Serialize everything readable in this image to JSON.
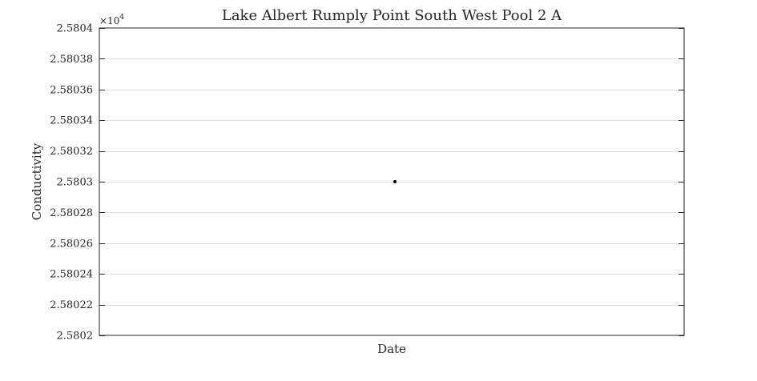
{
  "chart_data": {
    "type": "scatter",
    "title": "Lake Albert Rumply Point South West Pool 2 A",
    "xlabel": "Date",
    "ylabel": "Conductivity",
    "ylim": [
      2.5802,
      2.5804
    ],
    "y_exponent_label": "×10",
    "y_exponent_power": "4",
    "yticks": [
      "2.5802",
      "2.58022",
      "2.58024",
      "2.58026",
      "2.58028",
      "2.5803",
      "2.58032",
      "2.58034",
      "2.58036",
      "2.58038",
      "2.5804"
    ],
    "grid": "horizontal",
    "series": [
      {
        "values": [
          {
            "x": 0.5,
            "y": 2.5803
          }
        ]
      }
    ]
  }
}
